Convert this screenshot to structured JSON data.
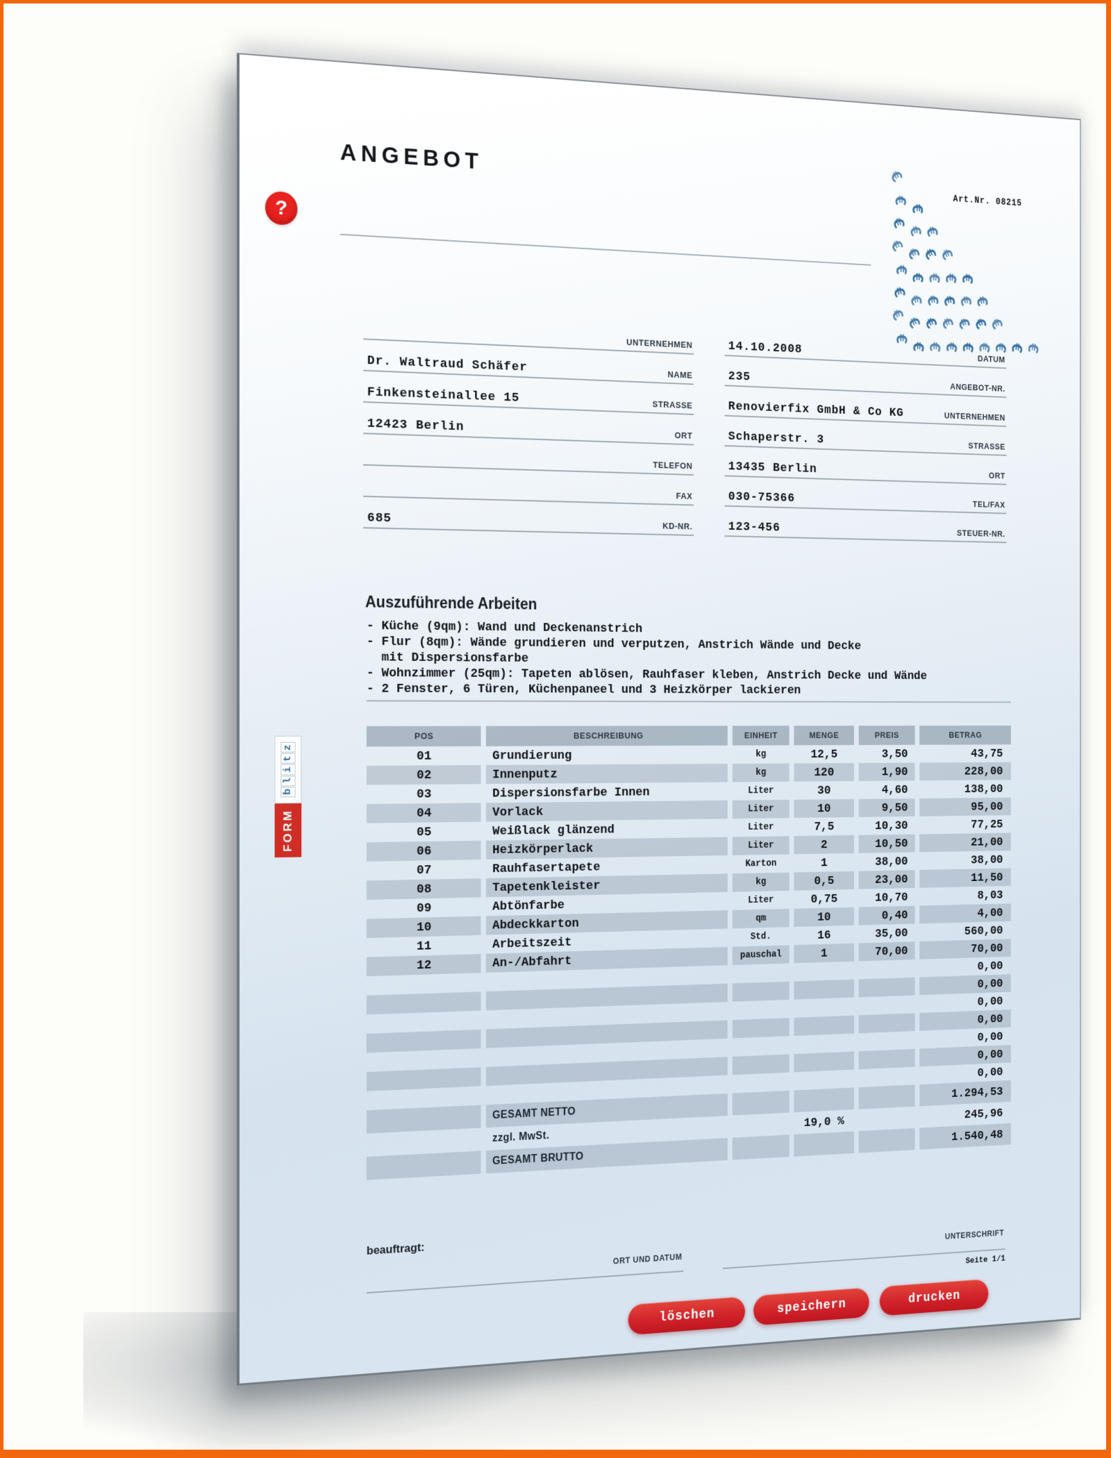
{
  "frame": {
    "border_color": "#f2670c",
    "background": "#fdfdf9",
    "accent_red": "#d2232b",
    "euro_blue": "#2d6b9f"
  },
  "page": {
    "title": "ANGEBOT",
    "art_no": "Art.Nr. 08215",
    "help_label": "?",
    "euro_symbol": "€",
    "logo": {
      "form": "FORM",
      "blitz": "blitz"
    },
    "recipient_fields": [
      {
        "label": "UNTERNEHMEN",
        "value": ""
      },
      {
        "label": "NAME",
        "value": "Dr. Waltraud Schäfer"
      },
      {
        "label": "STRASSE",
        "value": "Finkensteinallee 15"
      },
      {
        "label": "ORT",
        "value": "12423 Berlin"
      },
      {
        "label": "TELEFON",
        "value": ""
      },
      {
        "label": "FAX",
        "value": ""
      },
      {
        "label": "KD-NR.",
        "value": "685"
      }
    ],
    "sender_fields": [
      {
        "label": "DATUM",
        "value": "14.10.2008"
      },
      {
        "label": "ANGEBOT-NR.",
        "value": "235"
      },
      {
        "label": "UNTERNEHMEN",
        "value": "Renovierfix GmbH & Co KG"
      },
      {
        "label": "STRASSE",
        "value": "Schaperstr. 3"
      },
      {
        "label": "ORT",
        "value": "13435 Berlin"
      },
      {
        "label": "TEL/FAX",
        "value": "030-75366"
      },
      {
        "label": "STEUER-NR.",
        "value": "123-456"
      }
    ],
    "works": {
      "heading": "Auszuführende Arbeiten",
      "lines": [
        "- Küche (9qm): Wand und Deckenanstrich",
        "- Flur (8qm): Wände grundieren und verputzen, Anstrich Wände und Decke",
        "  mit Dispersionsfarbe",
        "- Wohnzimmer (25qm): Tapeten ablösen, Rauhfaser kleben, Anstrich Decke und Wände",
        "- 2 Fenster, 6 Türen, Küchenpaneel und 3 Heizkörper lackieren"
      ]
    },
    "table": {
      "headers": [
        "POS",
        "BESCHREIBUNG",
        "EINHEIT",
        "MENGE",
        "PREIS",
        "BETRAG"
      ],
      "rows": [
        {
          "pos": "01",
          "desc": "Grundierung",
          "unit": "kg",
          "qty": "12,5",
          "price": "3,50",
          "amount": "43,75"
        },
        {
          "pos": "02",
          "desc": "Innenputz",
          "unit": "kg",
          "qty": "120",
          "price": "1,90",
          "amount": "228,00"
        },
        {
          "pos": "03",
          "desc": "Dispersionsfarbe Innen",
          "unit": "Liter",
          "qty": "30",
          "price": "4,60",
          "amount": "138,00"
        },
        {
          "pos": "04",
          "desc": "Vorlack",
          "unit": "Liter",
          "qty": "10",
          "price": "9,50",
          "amount": "95,00"
        },
        {
          "pos": "05",
          "desc": "Weißlack glänzend",
          "unit": "Liter",
          "qty": "7,5",
          "price": "10,30",
          "amount": "77,25"
        },
        {
          "pos": "06",
          "desc": "Heizkörperlack",
          "unit": "Liter",
          "qty": "2",
          "price": "10,50",
          "amount": "21,00"
        },
        {
          "pos": "07",
          "desc": "Rauhfasertapete",
          "unit": "Karton",
          "qty": "1",
          "price": "38,00",
          "amount": "38,00"
        },
        {
          "pos": "08",
          "desc": "Tapetenkleister",
          "unit": "kg",
          "qty": "0,5",
          "price": "23,00",
          "amount": "11,50"
        },
        {
          "pos": "09",
          "desc": "Abtönfarbe",
          "unit": "Liter",
          "qty": "0,75",
          "price": "10,70",
          "amount": "8,03"
        },
        {
          "pos": "10",
          "desc": "Abdeckkarton",
          "unit": "qm",
          "qty": "10",
          "price": "0,40",
          "amount": "4,00"
        },
        {
          "pos": "11",
          "desc": "Arbeitszeit",
          "unit": "Std.",
          "qty": "16",
          "price": "35,00",
          "amount": "560,00"
        },
        {
          "pos": "12",
          "desc": "An-/Abfahrt",
          "unit": "pauschal",
          "qty": "1",
          "price": "70,00",
          "amount": "70,00"
        }
      ],
      "empty_row_count": 7,
      "empty_amount": "0,00",
      "totals": [
        {
          "label": "GESAMT NETTO",
          "rate": "",
          "amount": "1.294,53"
        },
        {
          "label": "zzgl. MwSt.",
          "rate": "19,0 %",
          "amount": "245,96"
        },
        {
          "label": "GESAMT BRUTTO",
          "rate": "",
          "amount": "1.540,48"
        }
      ]
    },
    "signature": {
      "commissioned": "beauftragt:",
      "place_date": "ORT UND DATUM",
      "sign": "UNTERSCHRIFT",
      "page_info": "Seite 1/1"
    },
    "buttons": [
      {
        "label": "löschen"
      },
      {
        "label": "speichern"
      },
      {
        "label": "drucken"
      }
    ]
  }
}
